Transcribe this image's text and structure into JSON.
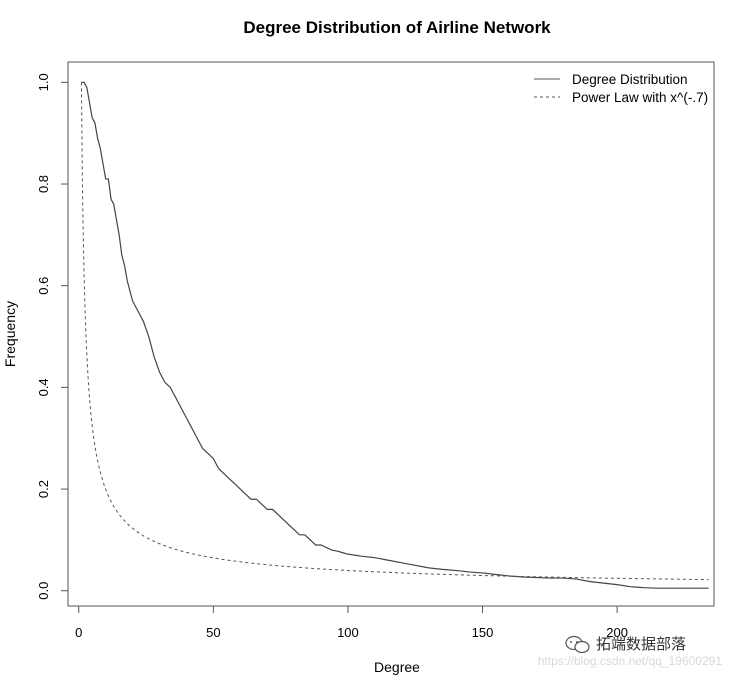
{
  "chart_data": {
    "type": "line",
    "title": "Degree Distribution of Airline Network",
    "xlabel": "Degree",
    "ylabel": "Frequency",
    "xlim": [
      -4,
      236
    ],
    "ylim": [
      -0.03,
      1.04
    ],
    "xticks": [
      0,
      50,
      100,
      150,
      200
    ],
    "yticks": [
      "0.0",
      "0.2",
      "0.4",
      "0.6",
      "0.8",
      "1.0"
    ],
    "grid": false,
    "legend_position": "top-right",
    "series": [
      {
        "name": "Degree Distribution",
        "style": "solid",
        "color": "#444444",
        "x": [
          1,
          2,
          3,
          4,
          5,
          6,
          7,
          8,
          9,
          10,
          11,
          12,
          13,
          14,
          15,
          16,
          17,
          18,
          19,
          20,
          22,
          24,
          26,
          28,
          30,
          32,
          34,
          36,
          38,
          40,
          42,
          44,
          46,
          48,
          50,
          52,
          54,
          56,
          58,
          60,
          62,
          64,
          66,
          68,
          70,
          72,
          74,
          76,
          78,
          80,
          82,
          84,
          86,
          88,
          90,
          92,
          94,
          96,
          98,
          100,
          105,
          110,
          115,
          120,
          125,
          130,
          135,
          140,
          145,
          150,
          155,
          160,
          165,
          170,
          175,
          180,
          185,
          190,
          195,
          200,
          205,
          210,
          215,
          220,
          225,
          230,
          234
        ],
        "y": [
          1.0,
          1.0,
          0.99,
          0.96,
          0.93,
          0.92,
          0.89,
          0.87,
          0.84,
          0.81,
          0.81,
          0.77,
          0.76,
          0.73,
          0.7,
          0.66,
          0.64,
          0.61,
          0.59,
          0.57,
          0.55,
          0.53,
          0.5,
          0.46,
          0.43,
          0.41,
          0.4,
          0.38,
          0.36,
          0.34,
          0.32,
          0.3,
          0.28,
          0.27,
          0.26,
          0.24,
          0.23,
          0.22,
          0.21,
          0.2,
          0.19,
          0.18,
          0.18,
          0.17,
          0.16,
          0.16,
          0.15,
          0.14,
          0.13,
          0.12,
          0.11,
          0.11,
          0.1,
          0.09,
          0.09,
          0.085,
          0.08,
          0.078,
          0.075,
          0.072,
          0.068,
          0.065,
          0.06,
          0.055,
          0.05,
          0.045,
          0.042,
          0.04,
          0.037,
          0.035,
          0.032,
          0.029,
          0.027,
          0.026,
          0.025,
          0.025,
          0.023,
          0.018,
          0.015,
          0.012,
          0.008,
          0.006,
          0.005,
          0.005,
          0.005,
          0.005,
          0.005
        ]
      },
      {
        "name": "Power Law with x^(-.7)",
        "style": "dashed",
        "color": "#555555",
        "function": "x^(-0.7)",
        "x_range": [
          1,
          234
        ]
      }
    ]
  },
  "watermark": {
    "brand": "拓端数据部落",
    "url": "https://blog.csdn.net/qq_19600291"
  },
  "colors": {
    "axis": "#555555",
    "line": "#444444",
    "dashed": "#555555"
  }
}
